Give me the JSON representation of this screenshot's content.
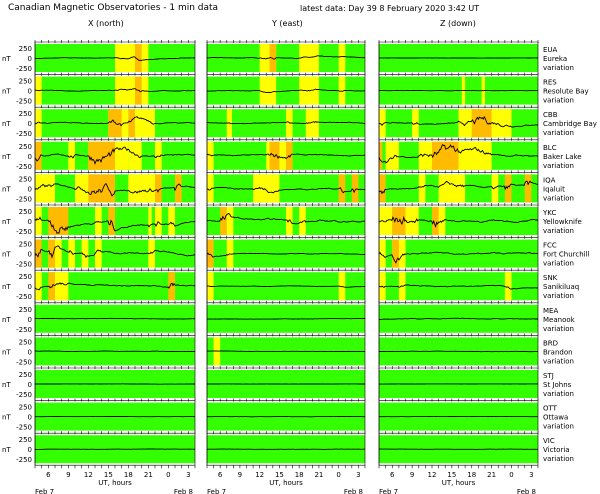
{
  "header": {
    "title": "Canadian Magnetic Observatories - 1 min data",
    "latest": "latest data:  Day  39     8 February 2020   3:42 UT"
  },
  "chart_data": {
    "type": "line",
    "columns": [
      "X (north)",
      "Y (east)",
      "Z (down)"
    ],
    "unit": "nT",
    "ylim": [
      -250,
      250
    ],
    "yticks": [
      "250",
      "0",
      "-250"
    ],
    "xlabel": "UT, hours",
    "xticks": [
      "6",
      "9",
      "12",
      "15",
      "18",
      "21",
      "0",
      "3"
    ],
    "xrange_hours": [
      4,
      28
    ],
    "date_start": "Feb  7",
    "date_end": "Feb  8",
    "variation_label": "variation",
    "colors": {
      "quiet": "#33ff00",
      "active": "#ffff00",
      "storm": "#ffbb00",
      "major": "#ff8800",
      "trace": "#000000"
    },
    "stations": [
      {
        "code": "EUA",
        "name": "Eureka",
        "bands": [
          [
            [
              16,
              21,
              1
            ],
            [
              19,
              20,
              2
            ]
          ],
          [
            [
              12,
              14.5,
              1
            ],
            [
              13.5,
              14.5,
              2
            ],
            [
              18,
              21,
              1
            ],
            [
              24,
              25,
              1
            ]
          ],
          []
        ],
        "activity": [
          60,
          60,
          10
        ]
      },
      {
        "code": "RES",
        "name": "Resolute Bay",
        "bands": [
          [
            [
              4,
              5,
              1
            ],
            [
              16,
              21,
              1
            ],
            [
              19,
              20,
              2
            ]
          ],
          [
            [
              12,
              14.5,
              1
            ],
            [
              18,
              21,
              1
            ],
            [
              24,
              25,
              1
            ]
          ],
          [
            [
              16.5,
              17,
              1
            ],
            [
              19.5,
              20,
              1
            ]
          ]
        ],
        "activity": [
          70,
          60,
          30
        ]
      },
      {
        "code": "CBB",
        "name": "Cambridge Bay",
        "bands": [
          [
            [
              4,
              5,
              1
            ],
            [
              15,
              22,
              1
            ],
            [
              15,
              17,
              2
            ],
            [
              18,
              19,
              2
            ]
          ],
          [
            [
              7,
              7.8,
              1
            ],
            [
              16,
              17,
              1
            ],
            [
              19,
              21,
              1
            ]
          ],
          [
            [
              4,
              5,
              1
            ],
            [
              9,
              10,
              1
            ],
            [
              16,
              24,
              1
            ],
            [
              18,
              21,
              2
            ]
          ]
        ],
        "activity": [
          120,
          90,
          150
        ]
      },
      {
        "code": "BLC",
        "name": "Baker Lake",
        "bands": [
          [
            [
              4,
              5,
              2
            ],
            [
              9,
              10,
              1
            ],
            [
              12,
              18,
              1
            ],
            [
              12,
              16,
              2
            ],
            [
              18,
              20,
              1
            ],
            [
              22,
              23,
              1
            ]
          ],
          [
            [
              4,
              5,
              1
            ],
            [
              13,
              16,
              1
            ],
            [
              13.5,
              15,
              2
            ],
            [
              16,
              17,
              2
            ]
          ],
          [
            [
              4,
              4.5,
              2
            ],
            [
              5,
              7,
              1
            ],
            [
              10,
              21,
              1
            ],
            [
              12,
              16,
              2
            ]
          ]
        ],
        "activity": [
          200,
          120,
          200
        ]
      },
      {
        "code": "IQA",
        "name": "Iqaluit",
        "bands": [
          [
            [
              4,
              7,
              1
            ],
            [
              10,
              13,
              1
            ],
            [
              12,
              16,
              2
            ],
            [
              18,
              22,
              1
            ],
            [
              22,
              23,
              2
            ],
            [
              25,
              26,
              2
            ]
          ],
          [
            [
              4,
              5,
              1
            ],
            [
              11,
              15,
              1
            ],
            [
              24,
              25,
              2
            ],
            [
              26,
              27,
              2
            ]
          ],
          [
            [
              4,
              5,
              2
            ],
            [
              10,
              11,
              1
            ],
            [
              13,
              17,
              1
            ],
            [
              21,
              22,
              1
            ],
            [
              23,
              24,
              2
            ],
            [
              26,
              27,
              2
            ]
          ]
        ],
        "activity": [
          180,
          150,
          180
        ]
      },
      {
        "code": "YKC",
        "name": "Yellowknife",
        "bands": [
          [
            [
              4,
              5,
              1
            ],
            [
              6,
              9,
              2
            ],
            [
              13,
              14,
              1
            ],
            [
              15,
              16,
              2
            ],
            [
              21,
              21.5,
              1
            ],
            [
              22,
              23,
              1
            ],
            [
              24,
              25,
              1
            ]
          ],
          [
            [
              6,
              7,
              2
            ],
            [
              7,
              8,
              1
            ],
            [
              16,
              17,
              1
            ],
            [
              18,
              19,
              1
            ]
          ],
          [
            [
              4,
              6,
              1
            ],
            [
              6,
              8,
              2
            ],
            [
              8,
              10,
              1
            ],
            [
              12,
              14,
              1
            ],
            [
              12,
              13,
              2
            ]
          ]
        ],
        "activity": [
          250,
          220,
          220
        ]
      },
      {
        "code": "FCC",
        "name": "Fort Churchill",
        "bands": [
          [
            [
              4,
              5,
              2
            ],
            [
              6,
              8,
              1
            ],
            [
              6,
              7,
              2
            ],
            [
              9,
              10,
              1
            ],
            [
              11,
              12,
              1
            ],
            [
              13,
              14,
              1
            ],
            [
              21,
              22,
              1
            ]
          ],
          [
            [
              4,
              5,
              2
            ],
            [
              7,
              8,
              1
            ]
          ],
          [
            [
              4,
              5,
              1
            ],
            [
              6,
              8,
              1
            ],
            [
              6,
              7,
              2
            ]
          ]
        ],
        "activity": [
          230,
          90,
          180
        ]
      },
      {
        "code": "SNK",
        "name": "Sanikiluaq",
        "bands": [
          [
            [
              4,
              5,
              1
            ],
            [
              6,
              7,
              2
            ],
            [
              7,
              9,
              1
            ],
            [
              24,
              25,
              2
            ]
          ],
          [
            [
              4,
              5,
              1
            ],
            [
              24,
              25,
              1
            ]
          ],
          [
            [
              4,
              5,
              1
            ],
            [
              7,
              8,
              1
            ],
            [
              23,
              24,
              1
            ]
          ]
        ],
        "activity": [
          150,
          50,
          120
        ]
      },
      {
        "code": "MEA",
        "name": "Meanook",
        "bands": [
          [],
          [],
          []
        ],
        "activity": [
          40,
          30,
          80
        ]
      },
      {
        "code": "BRD",
        "name": "Brandon",
        "bands": [
          [],
          [
            [
              5,
              6,
              1
            ]
          ],
          []
        ],
        "activity": [
          40,
          30,
          40
        ]
      },
      {
        "code": "STJ",
        "name": "St Johns",
        "bands": [
          [],
          [],
          []
        ],
        "activity": [
          20,
          20,
          15
        ]
      },
      {
        "code": "OTT",
        "name": "Ottawa",
        "bands": [
          [],
          [],
          []
        ],
        "activity": [
          20,
          20,
          15
        ]
      },
      {
        "code": "VIC",
        "name": "Victoria",
        "bands": [
          [],
          [],
          []
        ],
        "activity": [
          25,
          30,
          20
        ]
      }
    ]
  }
}
